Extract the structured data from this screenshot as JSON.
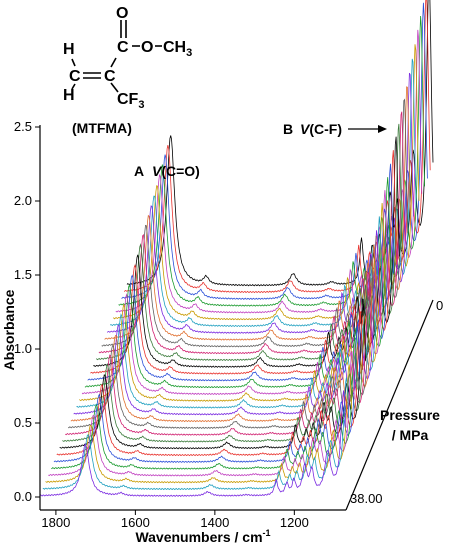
{
  "chart_data": {
    "type": "line",
    "title": "",
    "xlabel": "Wavenumbers / cm",
    "xlabel_sup": "-1",
    "ylabel": "Absorbance",
    "zlabel_line1": "Pressure",
    "zlabel_line2": "/ MPa",
    "xlim": [
      1840,
      1070
    ],
    "ylim": [
      -0.05,
      2.6
    ],
    "x_reversed": true,
    "x_ticks": [
      1800,
      1600,
      1400,
      1200
    ],
    "x_tick_labels": [
      "1800",
      "1600",
      "1400",
      "1200"
    ],
    "y_ticks": [
      0.0,
      0.5,
      1.0,
      1.5,
      2.0,
      2.5
    ],
    "y_tick_labels": [
      "0.0",
      "0.5",
      "1.0",
      "1.5",
      "2.0",
      "2.5"
    ],
    "pressure_range": [
      0,
      38.0
    ],
    "pressure_tick_labels": [
      "0",
      "38.00"
    ],
    "series_count": 32,
    "series_colors": [
      "#000000",
      "#e8322d",
      "#2a4fd8",
      "#1a9a2e",
      "#c040c0",
      "#c89a00",
      "#20a0c0",
      "#7a2ae0",
      "#e07030",
      "#606060",
      "#d02070",
      "#3a7a3a"
    ],
    "back_spectrum_peaks": [
      {
        "x": 1730,
        "height": 1.02,
        "label": "A"
      },
      {
        "x": 1641,
        "height": 0.05
      },
      {
        "x": 1422,
        "height": 0.08
      },
      {
        "x": 1325,
        "height": 0.02
      },
      {
        "x": 1250,
        "height": 0.3
      },
      {
        "x": 1223,
        "height": 0.22
      },
      {
        "x": 1205,
        "height": 0.28
      },
      {
        "x": 1178,
        "height": 0.55
      },
      {
        "x": 1160,
        "height": 0.45
      },
      {
        "x": 1120,
        "height": 0.82
      },
      {
        "x": 1080,
        "height": 2.05,
        "label": "B"
      }
    ],
    "annotations": [
      {
        "letter": "A",
        "label_v": "V",
        "label_rest": "(C=O)"
      },
      {
        "letter": "B",
        "label_v": "V",
        "label_rest": "(C-F)"
      }
    ],
    "grid": false,
    "legend": "none"
  },
  "molecule": {
    "name": "(MTFMA)",
    "atoms": {
      "h_top": "H",
      "h_bottom": "H",
      "c_left": "C",
      "c_mid": "C",
      "c_carbonyl": "C",
      "o_double": "O",
      "ester_o": "O",
      "methyl": "CH",
      "methyl_sub": "3",
      "cf": "CF",
      "cf_sub": "3"
    }
  }
}
